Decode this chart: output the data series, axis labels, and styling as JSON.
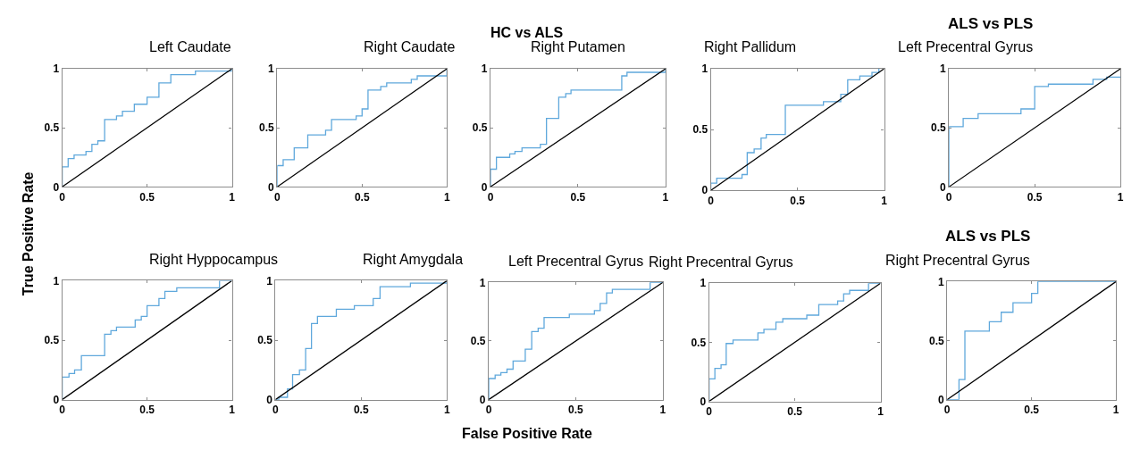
{
  "chart_data": [
    {
      "type": "step",
      "title": "Left Caudate",
      "annotations": [
        "HC vs ALS",
        "True Positive Rate",
        "False Positive Rate"
      ],
      "xlim": [
        0,
        1
      ],
      "ylim": [
        0,
        1
      ],
      "xticks": [
        0,
        0.5,
        1
      ],
      "yticks": [
        0,
        0.5,
        1
      ],
      "series": [
        {
          "color": "#5fa8dc",
          "x": [
            0,
            0,
            0.035,
            0.07,
            0.14,
            0.175,
            0.21,
            0.25,
            0.32,
            0.355,
            0.425,
            0.5,
            0.57,
            0.64,
            0.785,
            1
          ],
          "values": [
            0,
            0.17,
            0.24,
            0.27,
            0.3,
            0.36,
            0.39,
            0.57,
            0.6,
            0.64,
            0.7,
            0.76,
            0.88,
            0.95,
            0.98,
            1
          ]
        },
        {
          "type": "line",
          "color": "#000000",
          "x": [
            0,
            1
          ],
          "values": [
            0,
            1
          ]
        }
      ]
    },
    {
      "type": "step",
      "title": "Right Caudate",
      "xlim": [
        0,
        1
      ],
      "ylim": [
        0,
        1
      ],
      "xticks": [
        0,
        0.5,
        1
      ],
      "yticks": [
        0,
        0.5,
        1
      ],
      "series": [
        {
          "color": "#5fa8dc",
          "x": [
            0,
            0,
            0.035,
            0.1,
            0.18,
            0.285,
            0.32,
            0.465,
            0.5,
            0.535,
            0.61,
            0.645,
            0.79,
            0.825,
            1
          ],
          "values": [
            0,
            0.18,
            0.23,
            0.33,
            0.44,
            0.48,
            0.57,
            0.6,
            0.66,
            0.82,
            0.85,
            0.88,
            0.91,
            0.94,
            1
          ]
        },
        {
          "type": "line",
          "color": "#000000",
          "x": [
            0,
            1
          ],
          "values": [
            0,
            1
          ]
        }
      ]
    },
    {
      "type": "step",
      "title": "Right Putamen",
      "xlim": [
        0,
        1
      ],
      "ylim": [
        0,
        1
      ],
      "xticks": [
        0,
        0.5,
        1
      ],
      "yticks": [
        0,
        0.5,
        1
      ],
      "series": [
        {
          "color": "#5fa8dc",
          "x": [
            0,
            0,
            0.034,
            0.11,
            0.14,
            0.18,
            0.285,
            0.32,
            0.39,
            0.43,
            0.46,
            0.75,
            0.78,
            1
          ],
          "values": [
            0,
            0.15,
            0.25,
            0.28,
            0.3,
            0.33,
            0.36,
            0.58,
            0.76,
            0.79,
            0.82,
            0.94,
            0.97,
            1
          ]
        },
        {
          "type": "line",
          "color": "#000000",
          "x": [
            0,
            1
          ],
          "values": [
            0,
            1
          ]
        }
      ]
    },
    {
      "type": "step",
      "title": "Right Pallidum",
      "xlim": [
        0,
        1
      ],
      "ylim": [
        0,
        1
      ],
      "xticks": [
        0,
        0.5,
        1
      ],
      "yticks": [
        0,
        0.5,
        1
      ],
      "series": [
        {
          "color": "#5fa8dc",
          "x": [
            0,
            0,
            0.034,
            0.18,
            0.21,
            0.25,
            0.29,
            0.32,
            0.43,
            0.65,
            0.75,
            0.79,
            0.86,
            0.93,
            0.97
          ],
          "values": [
            0,
            0.06,
            0.1,
            0.13,
            0.31,
            0.34,
            0.43,
            0.46,
            0.7,
            0.73,
            0.79,
            0.91,
            0.94,
            0.97,
            1
          ]
        },
        {
          "type": "line",
          "color": "#000000",
          "x": [
            0,
            1
          ],
          "values": [
            0,
            1
          ]
        }
      ]
    },
    {
      "type": "step",
      "title": "ALS vs PLS",
      "subtitle": "Left Precentral Gyrus",
      "xlim": [
        0,
        1
      ],
      "ylim": [
        0,
        1
      ],
      "xticks": [
        0,
        0.5,
        1
      ],
      "yticks": [
        0,
        0.5,
        1
      ],
      "series": [
        {
          "color": "#5fa8dc",
          "x": [
            0,
            0,
            0.083,
            0.17,
            0.42,
            0.5,
            0.58,
            0.84,
            0.92,
            1
          ],
          "values": [
            0,
            0.51,
            0.58,
            0.62,
            0.66,
            0.85,
            0.87,
            0.91,
            0.93,
            0.93
          ]
        },
        {
          "type": "line",
          "color": "#000000",
          "x": [
            0,
            1
          ],
          "values": [
            0,
            1
          ]
        }
      ]
    },
    {
      "type": "step",
      "title": "Right Hyppocampus",
      "xlim": [
        0,
        1
      ],
      "ylim": [
        0,
        1
      ],
      "xticks": [
        0,
        0.5,
        1
      ],
      "yticks": [
        0,
        0.5,
        1
      ],
      "series": [
        {
          "color": "#5fa8dc",
          "x": [
            0,
            0,
            0.04,
            0.073,
            0.113,
            0.25,
            0.287,
            0.32,
            0.43,
            0.466,
            0.5,
            0.57,
            0.605,
            0.675,
            0.927,
            1
          ],
          "values": [
            0,
            0.19,
            0.22,
            0.25,
            0.37,
            0.55,
            0.58,
            0.61,
            0.67,
            0.7,
            0.79,
            0.85,
            0.91,
            0.94,
            1,
            1
          ]
        },
        {
          "type": "line",
          "color": "#000000",
          "x": [
            0,
            1
          ],
          "values": [
            0,
            1
          ]
        }
      ]
    },
    {
      "type": "step",
      "title": "Right Amygdala",
      "xlim": [
        0,
        1
      ],
      "ylim": [
        0,
        1
      ],
      "xticks": [
        0,
        0.5,
        1
      ],
      "yticks": [
        0,
        0.5,
        1
      ],
      "series": [
        {
          "color": "#5fa8dc",
          "x": [
            0,
            0.02,
            0.07,
            0.1,
            0.14,
            0.176,
            0.21,
            0.245,
            0.355,
            0.46,
            0.57,
            0.61,
            0.787,
            1
          ],
          "values": [
            0,
            0.02,
            0.09,
            0.21,
            0.25,
            0.43,
            0.64,
            0.7,
            0.76,
            0.79,
            0.85,
            0.95,
            0.98,
            1
          ]
        },
        {
          "type": "line",
          "color": "#000000",
          "x": [
            0,
            1
          ],
          "values": [
            0,
            1
          ]
        }
      ]
    },
    {
      "type": "step",
      "title": "Left Precentral Gyrus",
      "xlim": [
        0,
        1
      ],
      "ylim": [
        0,
        1
      ],
      "xticks": [
        0,
        0.5,
        1
      ],
      "yticks": [
        0,
        0.5,
        1
      ],
      "series": [
        {
          "color": "#5fa8dc",
          "x": [
            0,
            0,
            0.037,
            0.07,
            0.105,
            0.14,
            0.21,
            0.247,
            0.284,
            0.318,
            0.463,
            0.607,
            0.64,
            0.677,
            0.71,
            0.927,
            1
          ],
          "values": [
            0,
            0.18,
            0.21,
            0.23,
            0.26,
            0.33,
            0.43,
            0.58,
            0.61,
            0.7,
            0.73,
            0.76,
            0.82,
            0.91,
            0.94,
            1,
            1
          ]
        },
        {
          "type": "line",
          "color": "#000000",
          "x": [
            0,
            1
          ],
          "values": [
            0,
            1
          ]
        }
      ]
    },
    {
      "type": "step",
      "title": "Right Precentral Gyrus",
      "xlim": [
        0,
        1
      ],
      "ylim": [
        0,
        1
      ],
      "xticks": [
        0,
        0.5,
        1
      ],
      "yticks": [
        0,
        0.5,
        1
      ],
      "series": [
        {
          "color": "#5fa8dc",
          "x": [
            0,
            0,
            0.034,
            0.07,
            0.1,
            0.14,
            0.285,
            0.32,
            0.39,
            0.43,
            0.57,
            0.64,
            0.75,
            0.785,
            0.82,
            0.93,
            1
          ],
          "values": [
            0,
            0.19,
            0.28,
            0.31,
            0.49,
            0.52,
            0.58,
            0.61,
            0.67,
            0.7,
            0.73,
            0.82,
            0.85,
            0.91,
            0.94,
            1,
            1
          ]
        },
        {
          "type": "line",
          "color": "#000000",
          "x": [
            0,
            1
          ],
          "values": [
            0,
            1
          ]
        }
      ]
    },
    {
      "type": "step",
      "title": "ALS vs PLS",
      "subtitle": "Right Precentral Gyrus",
      "xlim": [
        0,
        1
      ],
      "ylim": [
        0,
        1
      ],
      "xticks": [
        0,
        0.5,
        1
      ],
      "yticks": [
        0,
        0.5,
        1
      ],
      "series": [
        {
          "color": "#5fa8dc",
          "x": [
            0,
            0.07,
            0.105,
            0.25,
            0.32,
            0.39,
            0.5,
            0.537,
            1
          ],
          "values": [
            0,
            0.17,
            0.58,
            0.66,
            0.74,
            0.82,
            0.9,
            1,
            1
          ]
        },
        {
          "type": "line",
          "color": "#000000",
          "x": [
            0,
            1
          ],
          "values": [
            0,
            1
          ]
        }
      ]
    }
  ]
}
